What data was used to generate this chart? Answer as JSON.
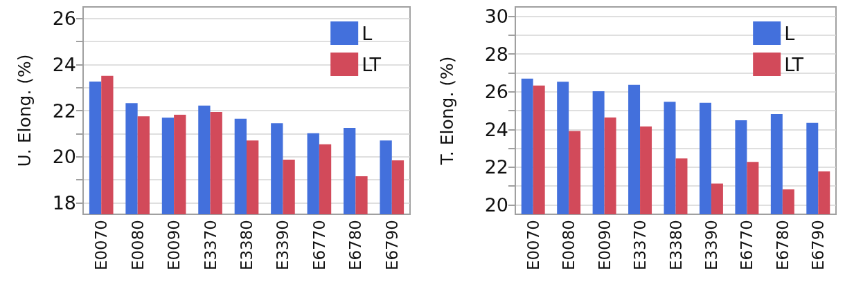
{
  "chart_data": [
    {
      "type": "bar",
      "ylabel": "U. Elong. (%)",
      "categories": [
        "E0070",
        "E0080",
        "E0090",
        "E3370",
        "E3380",
        "E3390",
        "E6770",
        "E6780",
        "E6790"
      ],
      "series": [
        {
          "name": "L",
          "color": "#4370dc",
          "values": [
            23.26,
            22.32,
            21.69,
            22.22,
            21.65,
            21.45,
            21.02,
            21.25,
            20.7
          ]
        },
        {
          "name": "LT",
          "color": "#d24a5a",
          "values": [
            23.51,
            21.75,
            21.82,
            21.94,
            20.7,
            19.87,
            20.54,
            19.15,
            19.84
          ]
        }
      ],
      "ylim": [
        17.5,
        26.5
      ],
      "yticks": [
        18,
        {
          "value": 19,
          "label": null
        },
        20,
        {
          "value": 21,
          "label": null
        },
        22,
        {
          "value": 23,
          "label": null
        },
        24,
        {
          "value": 25,
          "label": null
        },
        26
      ],
      "grid": "y",
      "legend": "top right"
    },
    {
      "type": "bar",
      "ylabel": "T. Elong. (%)",
      "categories": [
        "E0070",
        "E0080",
        "E0090",
        "E3370",
        "E3380",
        "E3390",
        "E6770",
        "E6780",
        "E6790"
      ],
      "series": [
        {
          "name": "L",
          "color": "#4370dc",
          "values": [
            26.7,
            26.53,
            26.03,
            26.37,
            25.47,
            25.41,
            24.49,
            24.82,
            24.35
          ]
        },
        {
          "name": "LT",
          "color": "#d24a5a",
          "values": [
            26.33,
            23.92,
            24.63,
            24.16,
            22.46,
            21.13,
            22.28,
            20.82,
            21.77
          ]
        }
      ],
      "ylim": [
        19.5,
        30.5
      ],
      "yticks": [
        20,
        {
          "value": 21,
          "label": null
        },
        22,
        {
          "value": 23,
          "label": null
        },
        24,
        {
          "value": 25,
          "label": null
        },
        26,
        {
          "value": 27,
          "label": null
        },
        28,
        {
          "value": 29,
          "label": null
        },
        30
      ],
      "grid": "y",
      "legend": "top right"
    }
  ]
}
